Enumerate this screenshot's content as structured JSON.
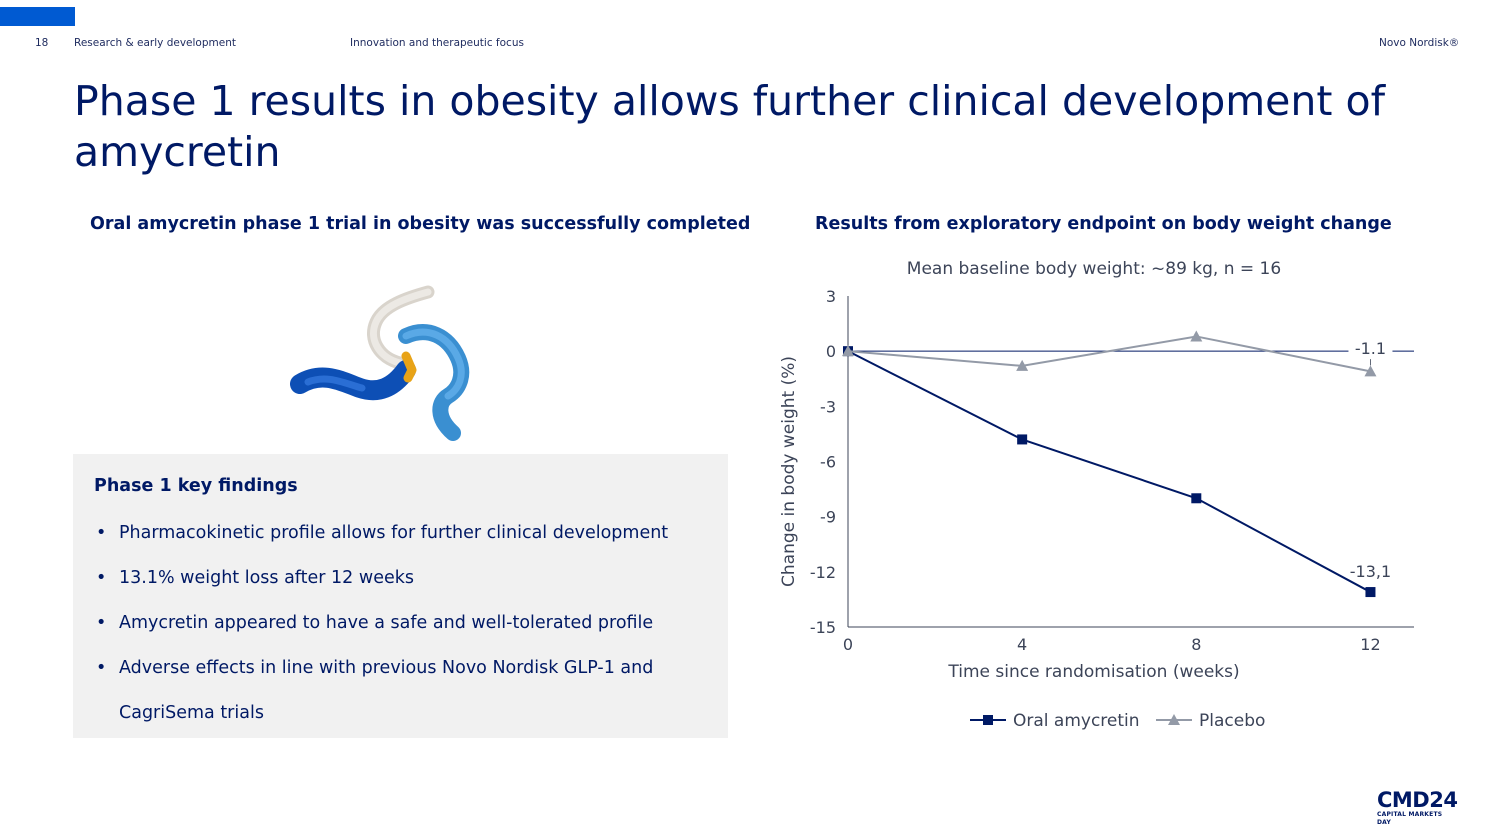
{
  "header": {
    "page_number": "18",
    "section": "Research & early development",
    "topic": "Innovation and therapeutic focus",
    "brand": "Novo Nordisk®"
  },
  "title": "Phase 1 results in obesity allows further clinical development of amycretin",
  "left": {
    "subtitle": "Oral amycretin phase 1 trial in obesity was successfully completed",
    "findings_title": "Phase 1 key findings",
    "findings": [
      "Pharmacokinetic profile allows for further clinical development",
      "13.1% weight loss after 12 weeks",
      "Amycretin appeared to have a safe and well-tolerated profile",
      "Adverse effects in line with previous Novo Nordisk GLP-1 and CagriSema trials"
    ]
  },
  "right": {
    "subtitle": "Results from exploratory endpoint on body weight change"
  },
  "logo": {
    "main": "CMD24",
    "sub": "CAPITAL MARKETS DAY"
  },
  "colors": {
    "accent": "#005ad2",
    "navy": "#001965",
    "placebo": "#939aa7",
    "box": "#f1f1f1"
  },
  "chart_data": {
    "type": "line",
    "title": "Mean baseline body weight: ~89 kg, n = 16",
    "xlabel": "Time since randomisation (weeks)",
    "ylabel": "Change in body weight (%)",
    "x": [
      0,
      4,
      8,
      12
    ],
    "x_ticks": [
      "0",
      "4",
      "8",
      "12"
    ],
    "y_ticks": [
      "3",
      "0",
      "-3",
      "-6",
      "-9",
      "-12",
      "-15"
    ],
    "ylim": [
      -15,
      3
    ],
    "xlim": [
      0,
      13
    ],
    "series": [
      {
        "name": "Oral amycretin",
        "values": [
          0,
          -4.8,
          -8.0,
          -13.1
        ],
        "color": "#001965",
        "marker": "square",
        "end_label": "-13,1"
      },
      {
        "name": "Placebo",
        "values": [
          0,
          -0.8,
          0.8,
          -1.1
        ],
        "color": "#939aa7",
        "marker": "triangle",
        "end_label": "-1.1"
      }
    ],
    "legend_position": "bottom-center",
    "grid": false
  }
}
